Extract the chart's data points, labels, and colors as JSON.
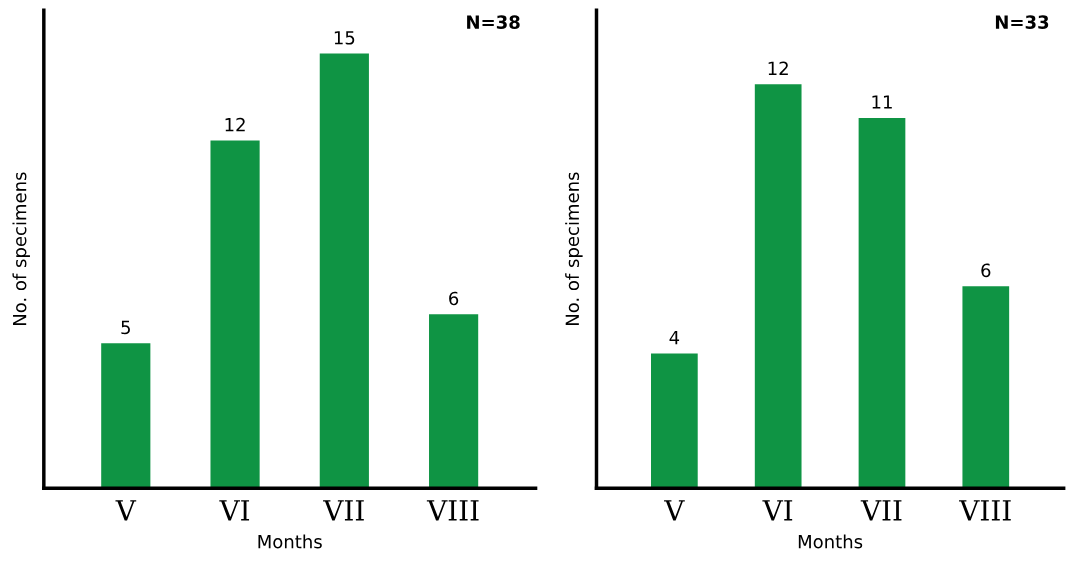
{
  "chart_data": [
    {
      "type": "bar",
      "categories": [
        "V",
        "VI",
        "VII",
        "VIII"
      ],
      "values": [
        5,
        12,
        15,
        6
      ],
      "color": "#0f9444",
      "xlabel": "Months",
      "ylabel": "No. of specimens",
      "annotations": [
        "N=38"
      ],
      "ylim": [
        0,
        16.5
      ],
      "tick_labels": "x",
      "data_labels": true,
      "grid": false,
      "legend": false
    },
    {
      "type": "bar",
      "categories": [
        "V",
        "VI",
        "VII",
        "VIII"
      ],
      "values": [
        4,
        12,
        11,
        6
      ],
      "color": "#0f9444",
      "xlabel": "Months",
      "ylabel": "No. of specimens",
      "annotations": [
        "N=33"
      ],
      "ylim": [
        0,
        14.2
      ],
      "tick_labels": "x",
      "data_labels": true,
      "grid": false,
      "legend": false
    }
  ]
}
